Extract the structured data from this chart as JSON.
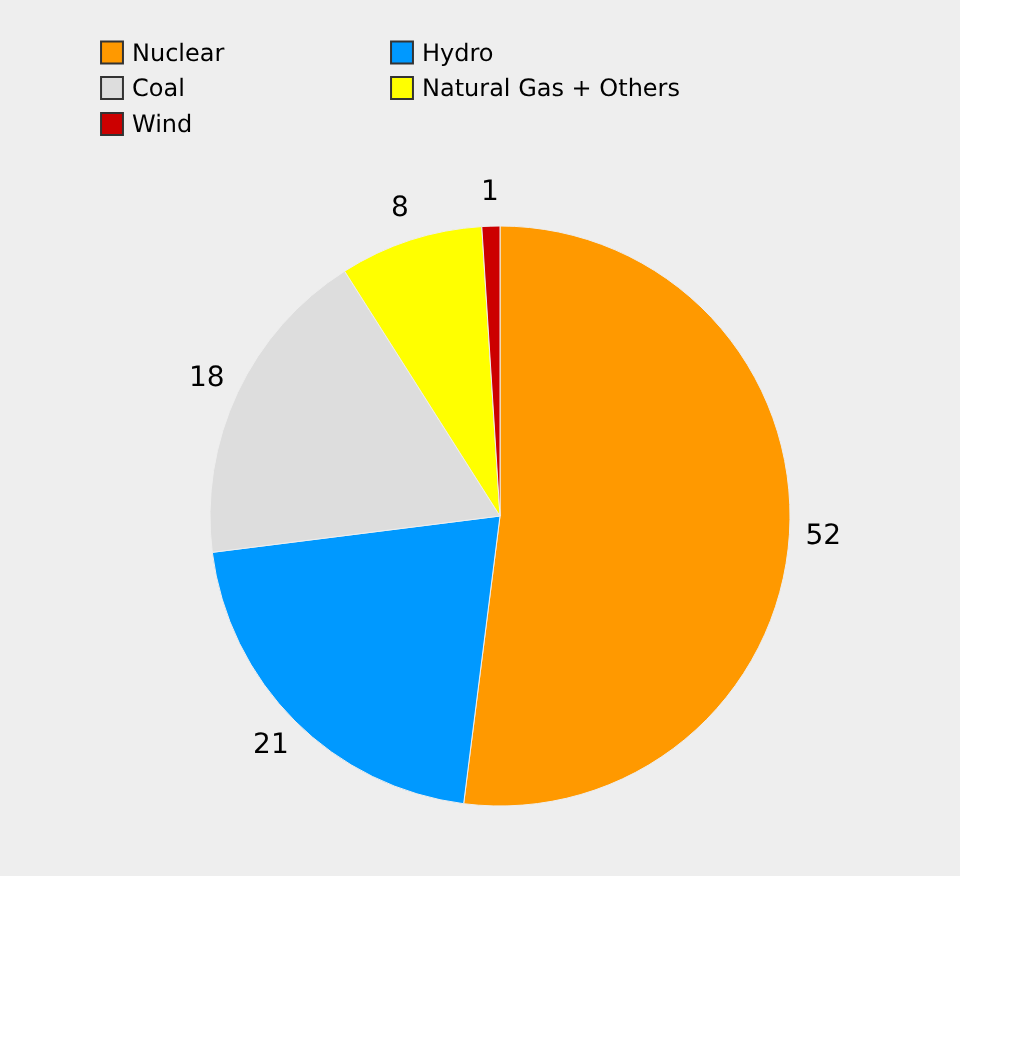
{
  "chart_data": {
    "type": "pie",
    "categories": [
      "Nuclear",
      "Hydro",
      "Coal",
      "Natural Gas + Others",
      "Wind"
    ],
    "values": [
      52,
      21,
      18,
      8,
      1
    ],
    "colors": [
      "#ff9900",
      "#0099ff",
      "#dddddd",
      "#ffff00",
      "#cc0000"
    ],
    "data_labels": true,
    "legend": "top left"
  }
}
